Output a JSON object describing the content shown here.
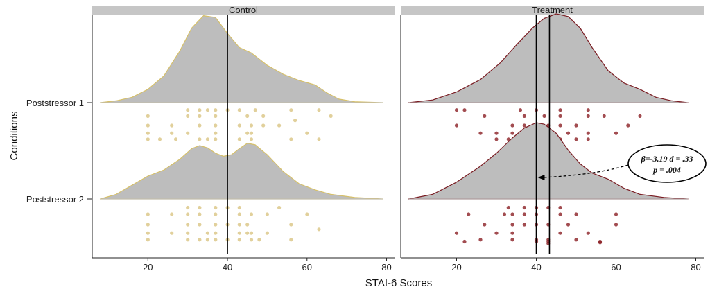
{
  "chart_data": {
    "type": "raincloud",
    "xlabel": "STAI-6 Scores",
    "ylabel": "Conditions",
    "xlim": [
      6,
      82
    ],
    "xticks": [
      20,
      40,
      60,
      80
    ],
    "conditions": [
      "Poststressor 1",
      "Poststressor 2"
    ],
    "panels": [
      {
        "name": "Control",
        "color": "#dcc88a",
        "outline": "#d6c06a",
        "vlines": [
          40
        ],
        "density": {
          "Poststressor 1": [
            [
              8,
              0.0
            ],
            [
              12,
              0.02
            ],
            [
              16,
              0.06
            ],
            [
              20,
              0.15
            ],
            [
              24,
              0.3
            ],
            [
              28,
              0.58
            ],
            [
              31,
              0.84
            ],
            [
              34,
              0.98
            ],
            [
              37,
              0.96
            ],
            [
              40,
              0.78
            ],
            [
              43,
              0.62
            ],
            [
              46,
              0.56
            ],
            [
              50,
              0.42
            ],
            [
              54,
              0.32
            ],
            [
              58,
              0.25
            ],
            [
              62,
              0.2
            ],
            [
              65,
              0.11
            ],
            [
              68,
              0.04
            ],
            [
              72,
              0.01
            ],
            [
              79,
              0.0
            ]
          ],
          "Poststressor 2": [
            [
              8,
              0.0
            ],
            [
              12,
              0.06
            ],
            [
              16,
              0.18
            ],
            [
              20,
              0.3
            ],
            [
              24,
              0.38
            ],
            [
              28,
              0.52
            ],
            [
              31,
              0.66
            ],
            [
              33,
              0.7
            ],
            [
              35,
              0.67
            ],
            [
              37,
              0.6
            ],
            [
              39,
              0.56
            ],
            [
              41,
              0.58
            ],
            [
              43,
              0.66
            ],
            [
              45,
              0.73
            ],
            [
              47,
              0.71
            ],
            [
              50,
              0.58
            ],
            [
              54,
              0.36
            ],
            [
              58,
              0.2
            ],
            [
              62,
              0.12
            ],
            [
              66,
              0.06
            ],
            [
              72,
              0.02
            ],
            [
              79,
              0.0
            ]
          ]
        },
        "points": {
          "Poststressor 1": [
            [
              20,
              0.18
            ],
            [
              20,
              0.32
            ],
            [
              20,
              0.5
            ],
            [
              20,
              0.72
            ],
            [
              23,
              0.18
            ],
            [
              26,
              0.32
            ],
            [
              26,
              0.5
            ],
            [
              27,
              0.18
            ],
            [
              30,
              0.32
            ],
            [
              30,
              0.72
            ],
            [
              30,
              0.86
            ],
            [
              33,
              0.18
            ],
            [
              33,
              0.5
            ],
            [
              33,
              0.72
            ],
            [
              33,
              0.86
            ],
            [
              35,
              0.18
            ],
            [
              35,
              0.86
            ],
            [
              37,
              0.18
            ],
            [
              37,
              0.32
            ],
            [
              37,
              0.5
            ],
            [
              37,
              0.72
            ],
            [
              37,
              0.86
            ],
            [
              40,
              0.86
            ],
            [
              43,
              0.18
            ],
            [
              43,
              0.5
            ],
            [
              43,
              0.86
            ],
            [
              45,
              0.32
            ],
            [
              45,
              0.72
            ],
            [
              46,
              0.18
            ],
            [
              46,
              0.32
            ],
            [
              46,
              0.5
            ],
            [
              47,
              0.86
            ],
            [
              49,
              0.5
            ],
            [
              49,
              0.72
            ],
            [
              53,
              0.5
            ],
            [
              56,
              0.18
            ],
            [
              56,
              0.86
            ],
            [
              57,
              0.62
            ],
            [
              60,
              0.32
            ],
            [
              63,
              0.18
            ],
            [
              63,
              0.86
            ],
            [
              66,
              0.72
            ]
          ],
          "Poststressor 2": [
            [
              20,
              0.18
            ],
            [
              20,
              0.32
            ],
            [
              20,
              0.5
            ],
            [
              20,
              0.72
            ],
            [
              26,
              0.32
            ],
            [
              26,
              0.72
            ],
            [
              30,
              0.18
            ],
            [
              30,
              0.32
            ],
            [
              30,
              0.5
            ],
            [
              30,
              0.72
            ],
            [
              30,
              0.86
            ],
            [
              33,
              0.18
            ],
            [
              33,
              0.5
            ],
            [
              33,
              0.72
            ],
            [
              33,
              0.86
            ],
            [
              35,
              0.18
            ],
            [
              35,
              0.32
            ],
            [
              37,
              0.18
            ],
            [
              37,
              0.32
            ],
            [
              37,
              0.5
            ],
            [
              37,
              0.72
            ],
            [
              37,
              0.86
            ],
            [
              40,
              0.18
            ],
            [
              40,
              0.5
            ],
            [
              40,
              0.86
            ],
            [
              43,
              0.18
            ],
            [
              43,
              0.32
            ],
            [
              43,
              0.5
            ],
            [
              43,
              0.72
            ],
            [
              43,
              0.86
            ],
            [
              45,
              0.32
            ],
            [
              45,
              0.5
            ],
            [
              46,
              0.18
            ],
            [
              46,
              0.32
            ],
            [
              46,
              0.72
            ],
            [
              48,
              0.18
            ],
            [
              50,
              0.32
            ],
            [
              50,
              0.72
            ],
            [
              53,
              0.86
            ],
            [
              56,
              0.18
            ],
            [
              56,
              0.5
            ],
            [
              60,
              0.72
            ],
            [
              63,
              0.4
            ]
          ]
        }
      },
      {
        "name": "Treatment",
        "color": "#8b1f24",
        "outline": "#7a1c22",
        "vlines": [
          40,
          43.3
        ],
        "density": {
          "Poststressor 1": [
            [
              8,
              0.0
            ],
            [
              14,
              0.03
            ],
            [
              20,
              0.12
            ],
            [
              26,
              0.26
            ],
            [
              31,
              0.45
            ],
            [
              35,
              0.65
            ],
            [
              39,
              0.84
            ],
            [
              42,
              0.95
            ],
            [
              45,
              1.0
            ],
            [
              48,
              0.97
            ],
            [
              51,
              0.84
            ],
            [
              54,
              0.62
            ],
            [
              58,
              0.36
            ],
            [
              62,
              0.22
            ],
            [
              66,
              0.15
            ],
            [
              70,
              0.06
            ],
            [
              74,
              0.02
            ],
            [
              78,
              0.0
            ]
          ],
          "Poststressor 2": [
            [
              8,
              0.0
            ],
            [
              14,
              0.06
            ],
            [
              20,
              0.22
            ],
            [
              26,
              0.43
            ],
            [
              30,
              0.6
            ],
            [
              34,
              0.8
            ],
            [
              37,
              0.93
            ],
            [
              40,
              1.0
            ],
            [
              42,
              0.98
            ],
            [
              45,
              0.86
            ],
            [
              48,
              0.64
            ],
            [
              51,
              0.46
            ],
            [
              54,
              0.34
            ],
            [
              58,
              0.26
            ],
            [
              62,
              0.14
            ],
            [
              66,
              0.06
            ],
            [
              72,
              0.02
            ],
            [
              78,
              0.0
            ]
          ]
        },
        "points": {
          "Poststressor 1": [
            [
              20,
              0.86
            ],
            [
              20,
              0.5
            ],
            [
              22,
              0.86
            ],
            [
              26,
              0.32
            ],
            [
              27,
              0.72
            ],
            [
              30,
              0.18
            ],
            [
              30,
              0.32
            ],
            [
              33,
              0.18
            ],
            [
              34,
              0.32
            ],
            [
              34,
              0.5
            ],
            [
              36,
              0.86
            ],
            [
              37,
              0.18
            ],
            [
              37,
              0.5
            ],
            [
              37,
              0.72
            ],
            [
              40,
              0.18
            ],
            [
              40,
              0.86
            ],
            [
              42,
              0.72
            ],
            [
              43,
              0.32
            ],
            [
              43,
              0.5
            ],
            [
              44,
              0.18
            ],
            [
              46,
              0.18
            ],
            [
              46,
              0.5
            ],
            [
              46,
              0.72
            ],
            [
              46,
              0.86
            ],
            [
              48,
              0.32
            ],
            [
              50,
              0.18
            ],
            [
              50,
              0.5
            ],
            [
              53,
              0.18
            ],
            [
              53,
              0.32
            ],
            [
              53,
              0.72
            ],
            [
              53,
              0.86
            ],
            [
              57,
              0.72
            ],
            [
              60,
              0.32
            ],
            [
              63,
              0.5
            ],
            [
              66,
              0.72
            ]
          ],
          "Poststressor 2": [
            [
              20,
              0.32
            ],
            [
              22,
              0.14
            ],
            [
              23,
              0.72
            ],
            [
              26,
              0.18
            ],
            [
              27,
              0.5
            ],
            [
              30,
              0.32
            ],
            [
              32,
              0.72
            ],
            [
              33,
              0.86
            ],
            [
              34,
              0.18
            ],
            [
              34,
              0.32
            ],
            [
              34,
              0.5
            ],
            [
              34,
              0.72
            ],
            [
              37,
              0.5
            ],
            [
              37,
              0.72
            ],
            [
              37,
              0.86
            ],
            [
              40,
              0.14
            ],
            [
              40,
              0.18
            ],
            [
              40,
              0.5
            ],
            [
              40,
              0.72
            ],
            [
              40,
              0.86
            ],
            [
              43,
              0.1
            ],
            [
              43,
              0.14
            ],
            [
              43,
              0.18
            ],
            [
              43,
              0.5
            ],
            [
              43,
              0.86
            ],
            [
              46,
              0.32
            ],
            [
              46,
              0.72
            ],
            [
              46,
              0.86
            ],
            [
              48,
              0.5
            ],
            [
              50,
              0.18
            ],
            [
              50,
              0.72
            ],
            [
              53,
              0.32
            ],
            [
              56,
              0.12
            ],
            [
              56,
              0.14
            ],
            [
              60,
              0.5
            ],
            [
              60,
              0.72
            ]
          ]
        }
      }
    ],
    "annotation": {
      "panel": "Treatment",
      "line1": "β=-3.19 d = .33",
      "line2": "p = .004",
      "arrow_to": 40
    }
  }
}
